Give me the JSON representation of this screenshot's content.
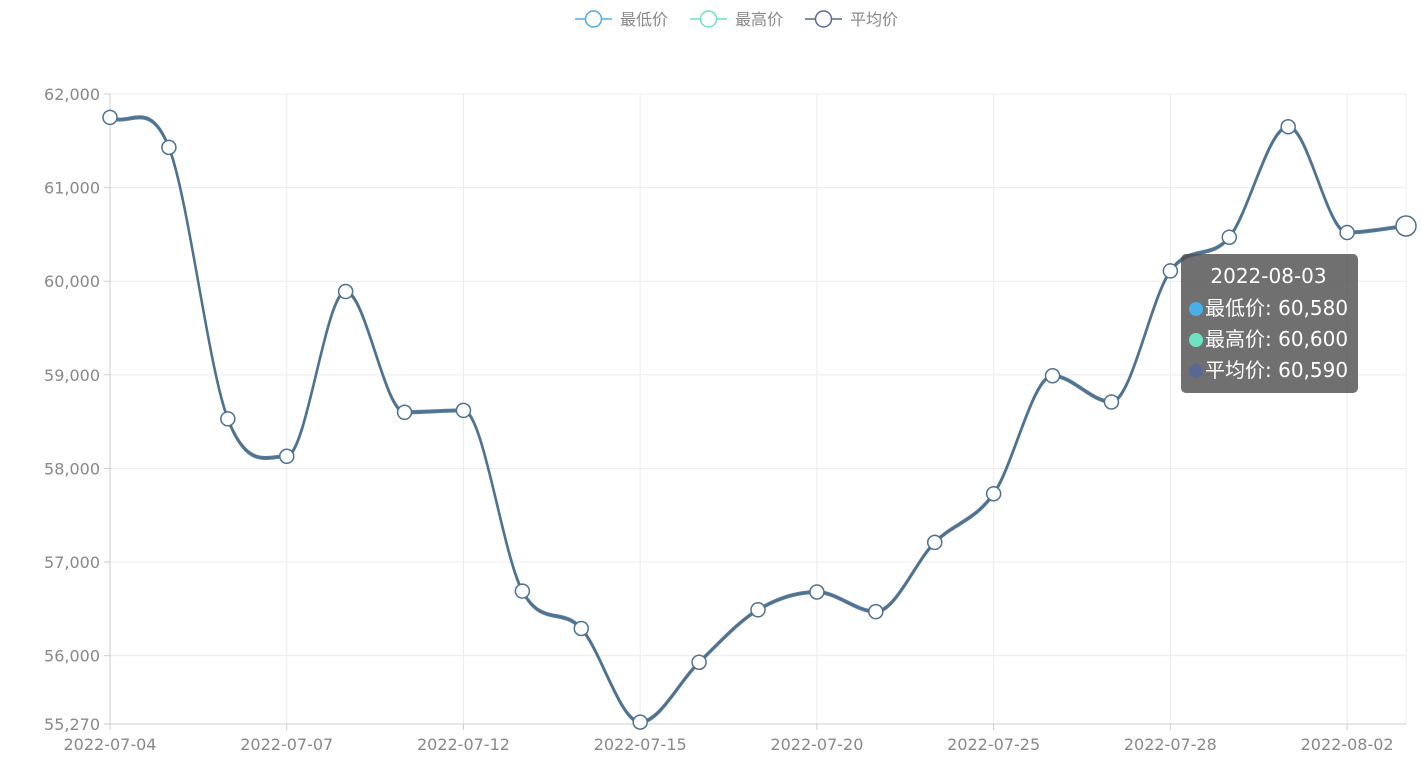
{
  "chart_data": {
    "type": "line",
    "legend": {
      "position": "top-center",
      "items": [
        {
          "name": "最低价",
          "color": "#4aaee8"
        },
        {
          "name": "最高价",
          "color": "#6ee2c2"
        },
        {
          "name": "平均价",
          "color": "#5b6793"
        }
      ]
    },
    "x": [
      "2022-07-04",
      "2022-07-05",
      "2022-07-06",
      "2022-07-07",
      "2022-07-08",
      "2022-07-11",
      "2022-07-12",
      "2022-07-13",
      "2022-07-14",
      "2022-07-15",
      "2022-07-18",
      "2022-07-19",
      "2022-07-20",
      "2022-07-21",
      "2022-07-22",
      "2022-07-25",
      "2022-07-26",
      "2022-07-27",
      "2022-07-28",
      "2022-07-29",
      "2022-08-01",
      "2022-08-02",
      "2022-08-03"
    ],
    "x_tick_labels": [
      "2022-07-04",
      "2022-07-07",
      "2022-07-12",
      "2022-07-15",
      "2022-07-20",
      "2022-07-25",
      "2022-07-28",
      "2022-08-02"
    ],
    "series": [
      {
        "name": "最低价",
        "color": "#4aaee8",
        "values": [
          61740,
          61420,
          58520,
          58120,
          59880,
          58590,
          58610,
          56680,
          56280,
          55280,
          55920,
          56480,
          56670,
          56460,
          57200,
          57720,
          58980,
          58700,
          60100,
          60460,
          61640,
          60510,
          60580
        ]
      },
      {
        "name": "最高价",
        "color": "#6ee2c2",
        "values": [
          61760,
          61440,
          58540,
          58140,
          59900,
          58610,
          58630,
          56700,
          56300,
          55300,
          55940,
          56500,
          56690,
          56480,
          57220,
          57740,
          59000,
          58720,
          60120,
          60480,
          61660,
          60530,
          60600
        ]
      },
      {
        "name": "平均价",
        "color": "#5b6793",
        "values": [
          61750,
          61430,
          58530,
          58130,
          59890,
          58600,
          58620,
          56690,
          56290,
          55290,
          55930,
          56490,
          56680,
          56470,
          57210,
          57730,
          58990,
          58710,
          60110,
          60470,
          61650,
          60520,
          60590
        ]
      }
    ],
    "y_ticks": [
      "55,270",
      "56,000",
      "57,000",
      "58,000",
      "59,000",
      "60,000",
      "61,000",
      "62,000"
    ],
    "y_tick_values": [
      55270,
      56000,
      57000,
      58000,
      59000,
      60000,
      61000,
      62000
    ],
    "ylim": [
      55270,
      62000
    ],
    "grid": true,
    "smooth": true,
    "line_color": "#4e7190"
  },
  "tooltip": {
    "title": "2022-08-03",
    "rows": [
      {
        "label": "最低价: 60,580",
        "color": "#4aaee8"
      },
      {
        "label": "最高价: 60,600",
        "color": "#6ee2c2"
      },
      {
        "label": "平均价: 60,590",
        "color": "#5b6793"
      }
    ]
  }
}
